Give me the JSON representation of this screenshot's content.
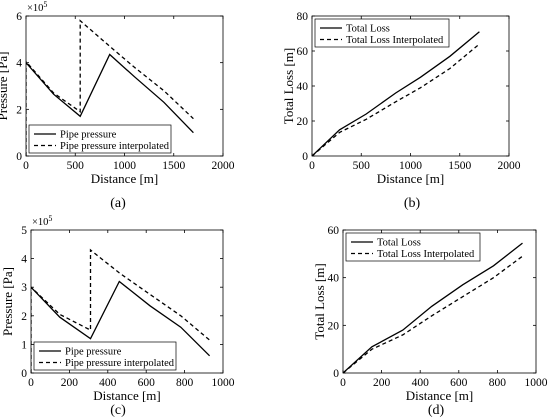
{
  "chart_data": [
    {
      "id": "a",
      "type": "line",
      "panel_label": "(a)",
      "xlabel": "Distance [m]",
      "ylabel": "Pressure [Pa]",
      "exponent": "×10",
      "exponent_power": "5",
      "xlim": [
        0,
        2000
      ],
      "ylim": [
        0,
        6
      ],
      "xticks": [
        0,
        500,
        1000,
        1500,
        2000
      ],
      "yticks": [
        0,
        2,
        4,
        6
      ],
      "legend_position": "bottom-left",
      "grid": false,
      "series": [
        {
          "name": "Pipe pressure",
          "style": "solid",
          "x": [
            0,
            280,
            550,
            850,
            1100,
            1400,
            1700
          ],
          "y": [
            4.0,
            2.65,
            1.7,
            4.35,
            3.4,
            2.3,
            1.0
          ]
        },
        {
          "name": "Pipe pressure interpolated",
          "style": "dashed",
          "x": [
            0,
            0,
            280,
            550,
            550,
            850,
            1100,
            1400,
            1700
          ],
          "y": [
            0.0,
            4.05,
            2.7,
            1.9,
            5.8,
            4.7,
            3.8,
            2.8,
            1.6
          ]
        }
      ]
    },
    {
      "id": "b",
      "type": "line",
      "panel_label": "(b)",
      "xlabel": "Distance [m]",
      "ylabel": "Total Loss [m]",
      "xlim": [
        0,
        2000
      ],
      "ylim": [
        0,
        80
      ],
      "xticks": [
        0,
        500,
        1000,
        1500,
        2000
      ],
      "yticks": [
        0,
        20,
        40,
        60,
        80
      ],
      "legend_position": "top-left",
      "grid": false,
      "series": [
        {
          "name": "Total Loss",
          "style": "solid",
          "x": [
            0,
            280,
            550,
            850,
            1100,
            1400,
            1700
          ],
          "y": [
            0,
            15,
            24,
            36,
            45,
            57,
            71
          ]
        },
        {
          "name": "Total Loss Interpolated",
          "style": "dashed",
          "x": [
            0,
            280,
            550,
            850,
            1100,
            1400,
            1700
          ],
          "y": [
            0,
            13.5,
            21,
            31,
            39,
            50,
            64
          ]
        }
      ]
    },
    {
      "id": "c",
      "type": "line",
      "panel_label": "(c)",
      "xlabel": "Distance [m]",
      "ylabel": "Pressure [Pa]",
      "exponent": "×10",
      "exponent_power": "5",
      "xlim": [
        0,
        1000
      ],
      "ylim": [
        0,
        5
      ],
      "xticks": [
        0,
        200,
        400,
        600,
        800,
        1000
      ],
      "yticks": [
        0,
        1,
        2,
        3,
        4,
        5
      ],
      "legend_position": "bottom-left",
      "grid": false,
      "series": [
        {
          "name": "Pipe pressure",
          "style": "solid",
          "x": [
            0,
            150,
            310,
            460,
            620,
            780,
            930
          ],
          "y": [
            3.0,
            1.95,
            1.2,
            3.2,
            2.35,
            1.6,
            0.6
          ]
        },
        {
          "name": "Pipe pressure interpolated",
          "style": "dashed",
          "x": [
            0,
            0,
            150,
            310,
            310,
            460,
            620,
            780,
            930
          ],
          "y": [
            0.0,
            3.0,
            2.05,
            1.5,
            4.3,
            3.5,
            2.75,
            2.0,
            1.15
          ]
        }
      ]
    },
    {
      "id": "d",
      "type": "line",
      "panel_label": "(d)",
      "xlabel": "Distance [m]",
      "ylabel": "Total Loss [m]",
      "xlim": [
        0,
        1000
      ],
      "ylim": [
        0,
        60
      ],
      "xticks": [
        0,
        200,
        400,
        600,
        800,
        1000
      ],
      "yticks": [
        0,
        20,
        40,
        60
      ],
      "legend_position": "top-left",
      "grid": false,
      "series": [
        {
          "name": "Total Loss",
          "style": "solid",
          "x": [
            0,
            150,
            310,
            460,
            620,
            780,
            930
          ],
          "y": [
            0,
            11,
            18,
            28,
            37,
            45,
            54.5
          ]
        },
        {
          "name": "Total Loss Interpolated",
          "style": "dashed",
          "x": [
            0,
            150,
            310,
            460,
            620,
            780,
            930
          ],
          "y": [
            0,
            10,
            16,
            24,
            32,
            40,
            49
          ]
        }
      ]
    }
  ]
}
